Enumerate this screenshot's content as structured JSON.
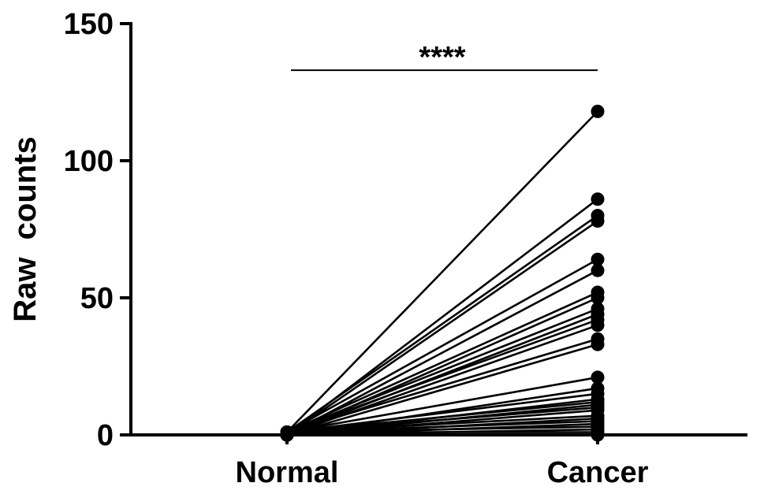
{
  "chart_data": {
    "type": "line",
    "ylabel": "Raw  counts",
    "xlabel": "",
    "categories": [
      "Normal",
      "Cancer"
    ],
    "ylim": [
      0,
      150
    ],
    "yticks": [
      0,
      50,
      100,
      150
    ],
    "grid": false,
    "legend": "none",
    "significance": {
      "label": "****",
      "from": "Normal",
      "to": "Cancer",
      "y": 133
    },
    "pairs": [
      [
        1,
        118
      ],
      [
        0,
        86
      ],
      [
        1,
        80
      ],
      [
        0,
        78
      ],
      [
        1,
        64
      ],
      [
        0,
        60
      ],
      [
        1,
        52
      ],
      [
        0,
        50
      ],
      [
        1,
        46
      ],
      [
        0,
        44
      ],
      [
        1,
        42
      ],
      [
        0,
        40
      ],
      [
        1,
        35
      ],
      [
        0,
        33
      ],
      [
        1,
        21
      ],
      [
        0,
        17
      ],
      [
        1,
        15
      ],
      [
        0,
        13
      ],
      [
        1,
        12
      ],
      [
        0,
        11
      ],
      [
        1,
        10
      ],
      [
        0,
        9
      ],
      [
        1,
        7
      ],
      [
        0,
        6
      ],
      [
        1,
        5
      ],
      [
        0,
        4
      ],
      [
        1,
        3
      ],
      [
        0,
        2
      ],
      [
        1,
        1
      ],
      [
        0,
        0
      ]
    ],
    "colors": {
      "line": "#000000",
      "marker": "#000000",
      "background": "#ffffff"
    }
  }
}
